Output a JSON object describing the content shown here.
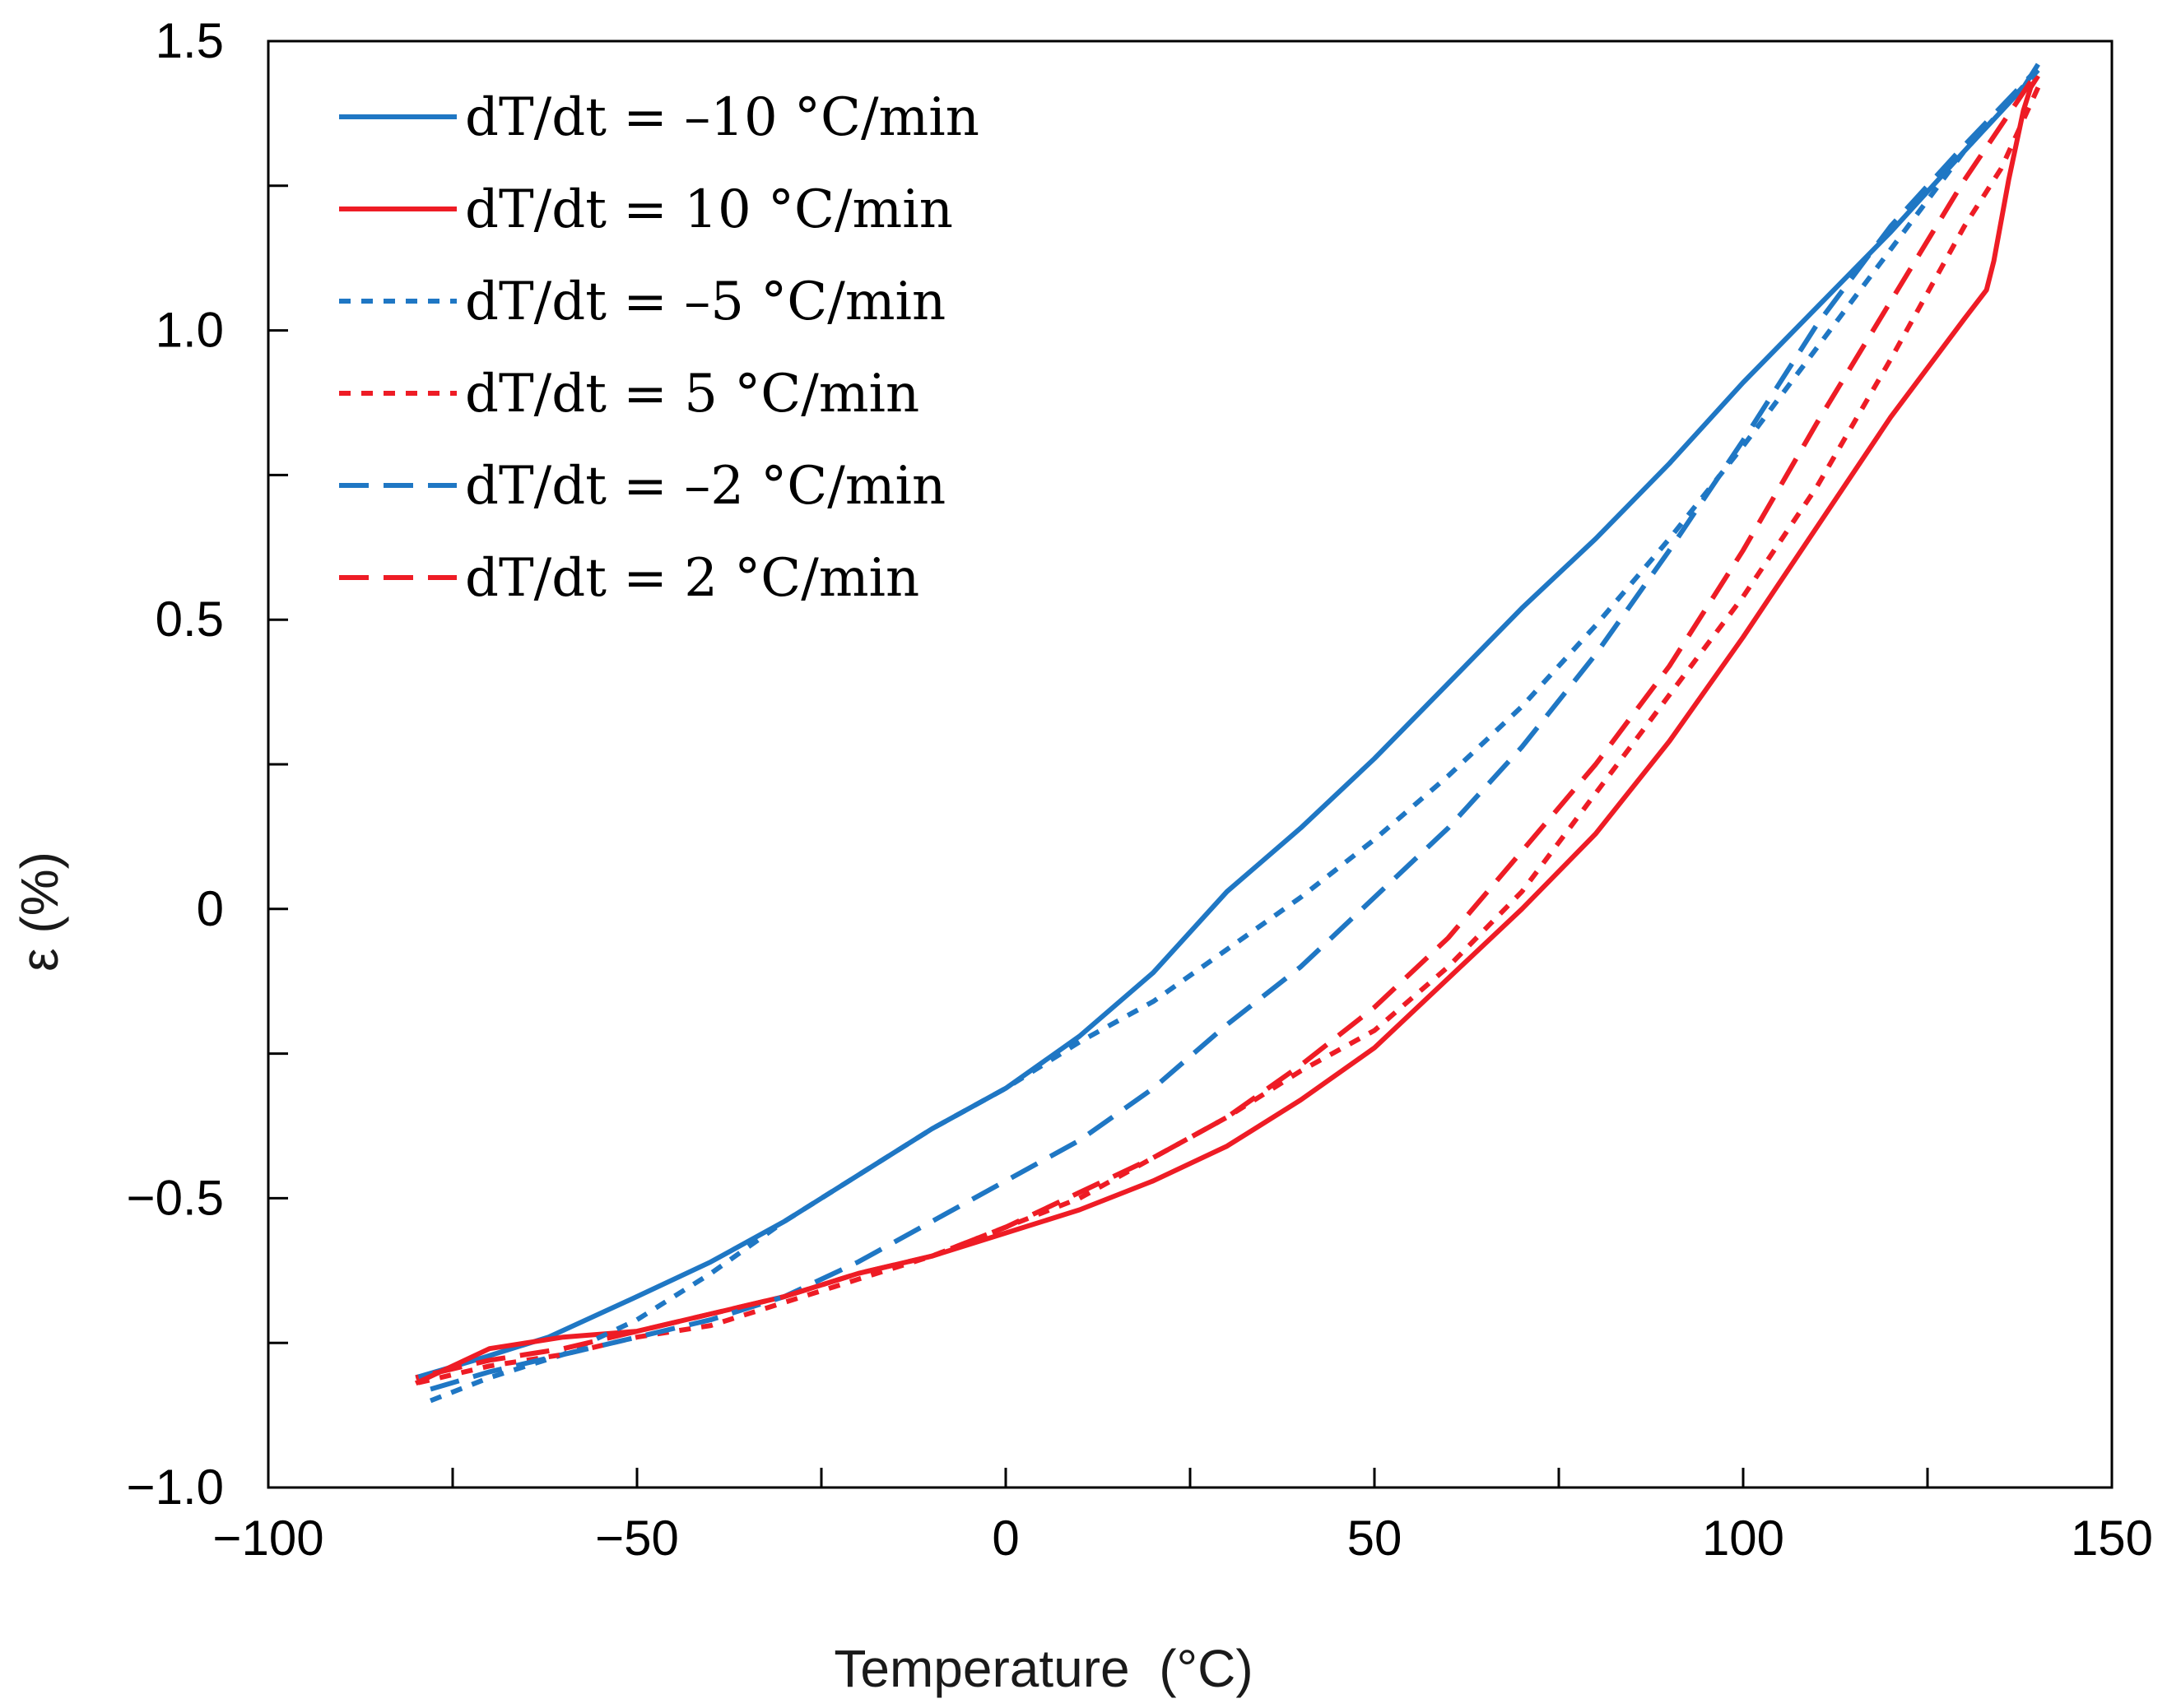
{
  "colors": {
    "blue": "#1f77c4",
    "red": "#ee1c25",
    "axis": "#000000"
  },
  "chart_data": {
    "type": "line",
    "title": "",
    "xlabel": "Temperature  (°C)",
    "ylabel": "ε (%)",
    "xlim": [
      -100,
      150
    ],
    "ylim": [
      -1.0,
      1.5
    ],
    "x_ticks": [
      -100,
      -50,
      0,
      50,
      100,
      150
    ],
    "x_tick_labels": [
      "−100",
      "−50",
      "0",
      "50",
      "100",
      "150"
    ],
    "x_minor_ticks": [
      -75,
      -25,
      25,
      75,
      125
    ],
    "y_ticks": [
      -1.0,
      -0.5,
      0,
      0.5,
      1.0,
      1.5
    ],
    "y_tick_labels": [
      "−1.0",
      "−0.5",
      "0",
      "0.5",
      "1.0",
      "1.5"
    ],
    "y_minor_ticks": [
      -0.75,
      -0.25,
      0.25,
      0.75,
      1.25
    ],
    "grid": false,
    "legend_position": "top-left",
    "series": [
      {
        "name": "dT/dt = –10 °C/min",
        "color": "#1f77c4",
        "style": "solid",
        "x": [
          -80,
          -72,
          -62,
          -50,
          -40,
          -30,
          -20,
          -10,
          0,
          10,
          20,
          30,
          40,
          50,
          60,
          70,
          80,
          90,
          100,
          110,
          120,
          130,
          138,
          140
        ],
        "y": [
          -0.81,
          -0.78,
          -0.74,
          -0.67,
          -0.61,
          -0.54,
          -0.46,
          -0.38,
          -0.31,
          -0.22,
          -0.11,
          0.03,
          0.14,
          0.26,
          0.39,
          0.52,
          0.64,
          0.77,
          0.91,
          1.04,
          1.17,
          1.31,
          1.42,
          1.46
        ]
      },
      {
        "name": "dT/dt =  10 °C/min",
        "color": "#ee1c25",
        "style": "solid",
        "x": [
          140,
          139,
          138,
          136,
          134,
          133,
          130,
          120,
          110,
          100,
          90,
          80,
          70,
          60,
          50,
          40,
          30,
          20,
          10,
          0,
          -10,
          -20,
          -30,
          -40,
          -50,
          -60,
          -70,
          -80
        ],
        "y": [
          1.44,
          1.42,
          1.38,
          1.26,
          1.12,
          1.07,
          1.02,
          0.85,
          0.66,
          0.47,
          0.29,
          0.13,
          0.0,
          -0.12,
          -0.24,
          -0.33,
          -0.41,
          -0.47,
          -0.52,
          -0.56,
          -0.6,
          -0.63,
          -0.67,
          -0.7,
          -0.73,
          -0.74,
          -0.76,
          -0.82
        ]
      },
      {
        "name": "dT/dt = –5 °C/min",
        "color": "#1f77c4",
        "style": "dotted",
        "x": [
          -78,
          -70,
          -60,
          -50,
          -40,
          -30,
          -20,
          -10,
          0,
          10,
          20,
          30,
          40,
          50,
          60,
          70,
          80,
          90,
          100,
          110,
          120,
          130,
          140
        ],
        "y": [
          -0.85,
          -0.81,
          -0.77,
          -0.71,
          -0.63,
          -0.54,
          -0.46,
          -0.38,
          -0.31,
          -0.23,
          -0.16,
          -0.07,
          0.02,
          0.12,
          0.23,
          0.35,
          0.49,
          0.64,
          0.8,
          0.97,
          1.14,
          1.31,
          1.45
        ]
      },
      {
        "name": "dT/dt =  5 °C/min",
        "color": "#ee1c25",
        "style": "dotted",
        "x": [
          140,
          135,
          130,
          120,
          110,
          100,
          90,
          80,
          70,
          60,
          50,
          40,
          30,
          20,
          10,
          0,
          -10,
          -20,
          -30,
          -40,
          -50,
          -60,
          -70,
          -80
        ],
        "y": [
          1.42,
          1.28,
          1.18,
          0.95,
          0.73,
          0.54,
          0.37,
          0.2,
          0.03,
          -0.1,
          -0.21,
          -0.28,
          -0.36,
          -0.43,
          -0.5,
          -0.55,
          -0.6,
          -0.64,
          -0.68,
          -0.72,
          -0.74,
          -0.77,
          -0.79,
          -0.82
        ]
      },
      {
        "name": "dT/dt = –2 °C/min",
        "color": "#1f77c4",
        "style": "dashed",
        "x": [
          -78,
          -70,
          -60,
          -50,
          -40,
          -30,
          -20,
          -10,
          0,
          10,
          20,
          30,
          40,
          50,
          60,
          70,
          80,
          90,
          100,
          110,
          120,
          130,
          139
        ],
        "y": [
          -0.83,
          -0.8,
          -0.77,
          -0.74,
          -0.71,
          -0.67,
          -0.61,
          -0.54,
          -0.47,
          -0.4,
          -0.31,
          -0.2,
          -0.1,
          0.02,
          0.14,
          0.28,
          0.44,
          0.62,
          0.81,
          1.01,
          1.18,
          1.32,
          1.44
        ]
      },
      {
        "name": "dT/dt =  2 °C/min",
        "color": "#ee1c25",
        "style": "dashed",
        "x": [
          139,
          130,
          120,
          110,
          100,
          90,
          80,
          70,
          60,
          50,
          40,
          30,
          20,
          10,
          0,
          -10,
          -20,
          -30,
          -40,
          -50,
          -60,
          -70,
          -80
        ],
        "y": [
          1.43,
          1.26,
          1.05,
          0.84,
          0.62,
          0.42,
          0.25,
          0.1,
          -0.05,
          -0.17,
          -0.27,
          -0.36,
          -0.43,
          -0.49,
          -0.55,
          -0.6,
          -0.63,
          -0.67,
          -0.7,
          -0.73,
          -0.76,
          -0.78,
          -0.81
        ]
      }
    ]
  }
}
